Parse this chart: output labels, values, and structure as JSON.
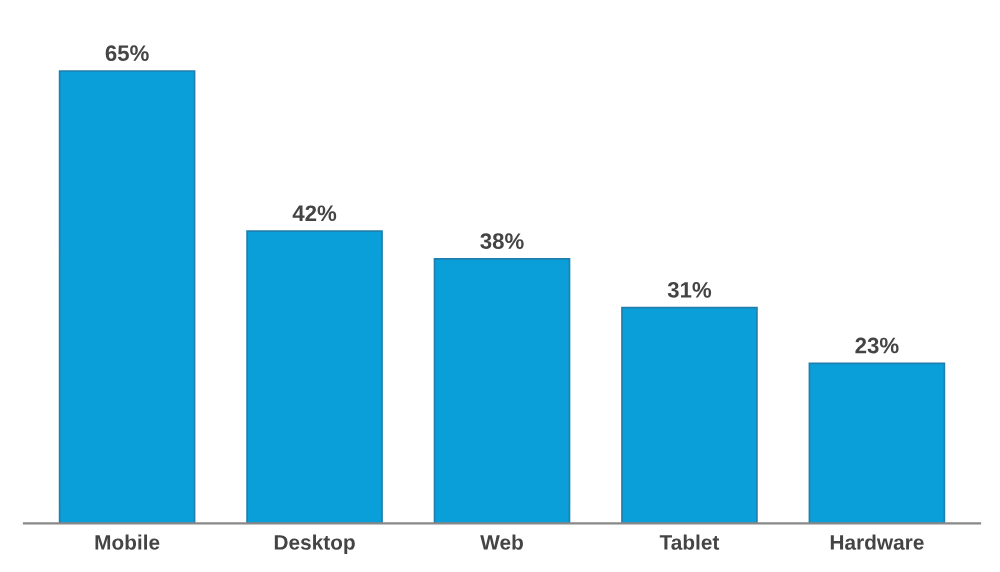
{
  "chart_data": {
    "type": "bar",
    "categories": [
      "Mobile",
      "Desktop",
      "Web",
      "Tablet",
      "Hardware"
    ],
    "values": [
      65,
      42,
      38,
      31,
      23
    ],
    "value_labels": [
      "65%",
      "42%",
      "38%",
      "31%",
      "23%"
    ],
    "color": "#0a9fd8",
    "grid": false,
    "legend": false
  }
}
